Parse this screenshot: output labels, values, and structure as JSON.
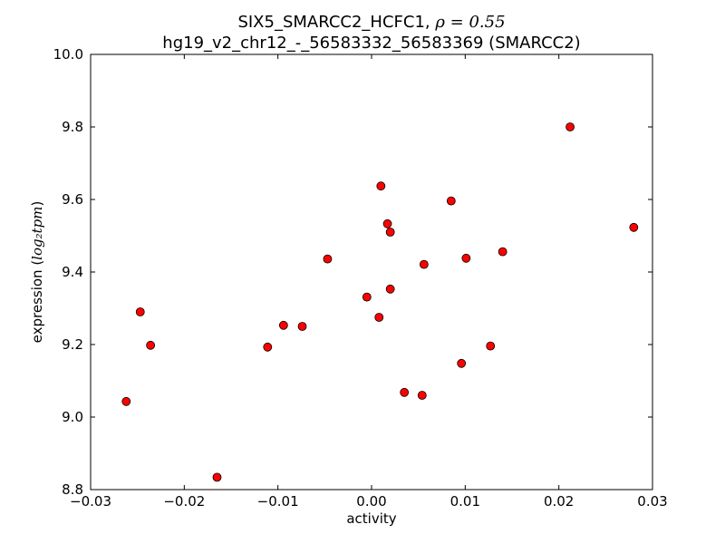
{
  "chart_data": {
    "type": "scatter",
    "title_line1_prefix": "SIX5_SMARCC2_HCFC1, ",
    "title_line1_rho": "ρ = 0.55",
    "title_line2": "hg19_v2_chr12_-_56583332_56583369 (SMARCC2)",
    "xlabel": "activity",
    "ylabel_prefix": "expression (",
    "ylabel_math": "log₂tpm",
    "ylabel_suffix": ")",
    "xlim": [
      -0.03,
      0.03
    ],
    "ylim": [
      8.8,
      10.0
    ],
    "xticks": [
      -0.03,
      -0.02,
      -0.01,
      0.0,
      0.01,
      0.02,
      0.03
    ],
    "xtick_labels": [
      "−0.03",
      "−0.02",
      "−0.01",
      "0.00",
      "0.01",
      "0.02",
      "0.03"
    ],
    "yticks": [
      8.8,
      9.0,
      9.2,
      9.4,
      9.6,
      9.8,
      10.0
    ],
    "ytick_labels": [
      "8.8",
      "9.0",
      "9.2",
      "9.4",
      "9.6",
      "9.8",
      "10.0"
    ],
    "grid": false,
    "marker_color": "#ff0000",
    "marker_edge_color": "#000000",
    "points": [
      {
        "x": -0.0262,
        "y": 9.043
      },
      {
        "x": -0.0247,
        "y": 9.29
      },
      {
        "x": -0.0236,
        "y": 9.198
      },
      {
        "x": -0.0165,
        "y": 8.834
      },
      {
        "x": -0.0111,
        "y": 9.193
      },
      {
        "x": -0.0094,
        "y": 9.253
      },
      {
        "x": -0.0074,
        "y": 9.25
      },
      {
        "x": -0.0047,
        "y": 9.436
      },
      {
        "x": -0.0005,
        "y": 9.331
      },
      {
        "x": 0.0008,
        "y": 9.275
      },
      {
        "x": 0.001,
        "y": 9.637
      },
      {
        "x": 0.0017,
        "y": 9.533
      },
      {
        "x": 0.002,
        "y": 9.51
      },
      {
        "x": 0.002,
        "y": 9.353
      },
      {
        "x": 0.0035,
        "y": 9.068
      },
      {
        "x": 0.0054,
        "y": 9.06
      },
      {
        "x": 0.0056,
        "y": 9.421
      },
      {
        "x": 0.0085,
        "y": 9.596
      },
      {
        "x": 0.0096,
        "y": 9.148
      },
      {
        "x": 0.0101,
        "y": 9.438
      },
      {
        "x": 0.0127,
        "y": 9.196
      },
      {
        "x": 0.014,
        "y": 9.456
      },
      {
        "x": 0.0212,
        "y": 9.8
      },
      {
        "x": 0.028,
        "y": 9.523
      }
    ]
  }
}
